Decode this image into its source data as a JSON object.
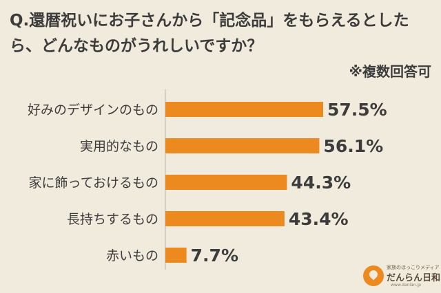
{
  "question": "Q.還暦祝いにお子さんから「記念品」をもらえるとしたら、どんなものがうれしいですか？",
  "note": "※複数回答可",
  "chart_data": {
    "type": "bar",
    "orientation": "horizontal",
    "categories": [
      "好みのデザインのもの",
      "実用的なもの",
      "家に飾っておけるもの",
      "長持ちするもの",
      "赤いもの"
    ],
    "values": [
      57.5,
      56.1,
      44.3,
      43.4,
      7.7
    ],
    "value_labels": [
      "57.5%",
      "56.1%",
      "44.3%",
      "43.4%",
      "7.7%"
    ],
    "unit": "%",
    "bar_color": "#ed8a1f",
    "xlim": [
      0,
      100
    ]
  },
  "logo": {
    "tagline": "家族のほっこりメディア",
    "name": "だんらん日和",
    "url": "www.danlan.jp"
  }
}
